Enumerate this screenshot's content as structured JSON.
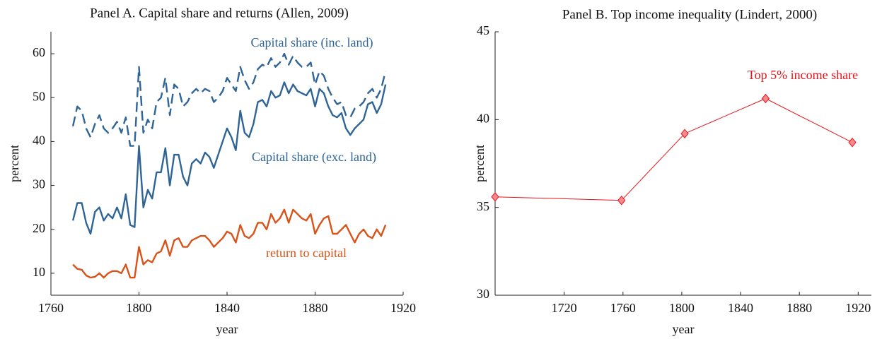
{
  "chart_data": [
    {
      "type": "line",
      "title": "Panel A. Capital share and returns (Allen, 2009)",
      "xlabel": "year",
      "ylabel": "percent",
      "xlim": [
        1760,
        1920
      ],
      "ylim": [
        5,
        65
      ],
      "xticks": [
        1760,
        1800,
        1840,
        1880,
        1920
      ],
      "yticks": [
        10,
        20,
        30,
        40,
        50,
        60
      ],
      "x": [
        1770,
        1772,
        1774,
        1776,
        1778,
        1780,
        1782,
        1784,
        1786,
        1788,
        1790,
        1792,
        1794,
        1796,
        1798,
        1800,
        1802,
        1804,
        1806,
        1808,
        1810,
        1812,
        1814,
        1816,
        1818,
        1820,
        1822,
        1824,
        1826,
        1828,
        1830,
        1832,
        1834,
        1836,
        1838,
        1840,
        1842,
        1844,
        1846,
        1848,
        1850,
        1852,
        1854,
        1856,
        1858,
        1860,
        1862,
        1864,
        1866,
        1868,
        1870,
        1872,
        1874,
        1876,
        1878,
        1880,
        1882,
        1884,
        1886,
        1888,
        1890,
        1892,
        1894,
        1896,
        1898,
        1900,
        1902,
        1904,
        1906,
        1908,
        1910,
        1912
      ],
      "series": [
        {
          "name": "Capital share (inc. land)",
          "color": "#2e6496",
          "dashed": true,
          "values": [
            43.5,
            48,
            47,
            43,
            41,
            44,
            46,
            43,
            42,
            43,
            44.5,
            42,
            45.5,
            39,
            39,
            57,
            42,
            45,
            43,
            49,
            50,
            54.5,
            46,
            53,
            52,
            48,
            49,
            51,
            52,
            51,
            52,
            51.5,
            49,
            50,
            51.5,
            54.5,
            53,
            51.5,
            57,
            54,
            52,
            53.5,
            56.5,
            57.5,
            57,
            59,
            57,
            58,
            60,
            57.5,
            59.5,
            58,
            57,
            57,
            58,
            53,
            56,
            55,
            52,
            50,
            48.5,
            49,
            46,
            45.5,
            47.5,
            48,
            49,
            51,
            52,
            50,
            52,
            56
          ]
        },
        {
          "name": "Capital share (exc. land)",
          "color": "#2e6496",
          "dashed": false,
          "values": [
            22,
            26,
            26,
            21.5,
            19,
            24,
            25,
            22,
            23.5,
            22.5,
            25,
            22.5,
            28,
            21,
            20.5,
            39,
            25,
            29,
            27,
            33,
            33,
            38.5,
            30,
            37,
            37,
            32,
            30,
            35,
            36,
            35,
            37.5,
            36.5,
            34,
            37,
            40,
            43,
            41,
            38,
            47,
            42,
            41,
            44,
            49,
            49.5,
            48,
            51.5,
            50,
            50.5,
            53.5,
            51,
            53,
            51.5,
            51,
            50.5,
            52,
            48,
            52,
            51,
            48,
            46,
            45.5,
            46.5,
            43,
            41.5,
            43,
            44,
            45,
            48.5,
            49,
            46.5,
            48.5,
            53
          ]
        },
        {
          "name": "return to capital",
          "color": "#d95319",
          "dashed": false,
          "values": [
            12,
            11,
            10.8,
            9.5,
            9,
            9.2,
            10,
            9,
            10,
            10.5,
            10.5,
            10,
            12,
            9,
            9,
            16,
            12,
            13,
            12.5,
            14.5,
            15,
            17.5,
            14,
            17.5,
            18,
            16,
            16,
            17.5,
            18,
            18.5,
            18.5,
            17.5,
            16,
            17,
            18,
            19.5,
            19,
            17,
            21,
            18.5,
            18,
            19,
            21.5,
            21.5,
            20,
            23.5,
            21.5,
            22.5,
            24.5,
            21.5,
            24.5,
            23.5,
            22.5,
            22,
            23.5,
            19,
            21,
            22.5,
            23,
            19,
            19,
            20,
            21,
            19,
            17,
            19,
            20,
            18.5,
            18,
            20,
            18.5,
            21
          ]
        }
      ]
    },
    {
      "type": "line",
      "title": "Panel B. Top income inequality (Lindert, 2000)",
      "xlabel": "year",
      "ylabel": "percent",
      "xlim": [
        1673,
        1929
      ],
      "ylim": [
        30,
        45
      ],
      "xticks": [
        1720,
        1760,
        1800,
        1840,
        1880,
        1920
      ],
      "yticks": [
        30,
        35,
        40,
        45
      ],
      "x": [
        1673,
        1759,
        1802,
        1857,
        1916
      ],
      "series": [
        {
          "name": "Top 5% income share",
          "color": "#e8141c",
          "marker": "diamond",
          "marker_fill": "#f58a8d",
          "dashed": false,
          "values": [
            35.6,
            35.4,
            39.2,
            41.2,
            38.7
          ]
        }
      ]
    }
  ]
}
